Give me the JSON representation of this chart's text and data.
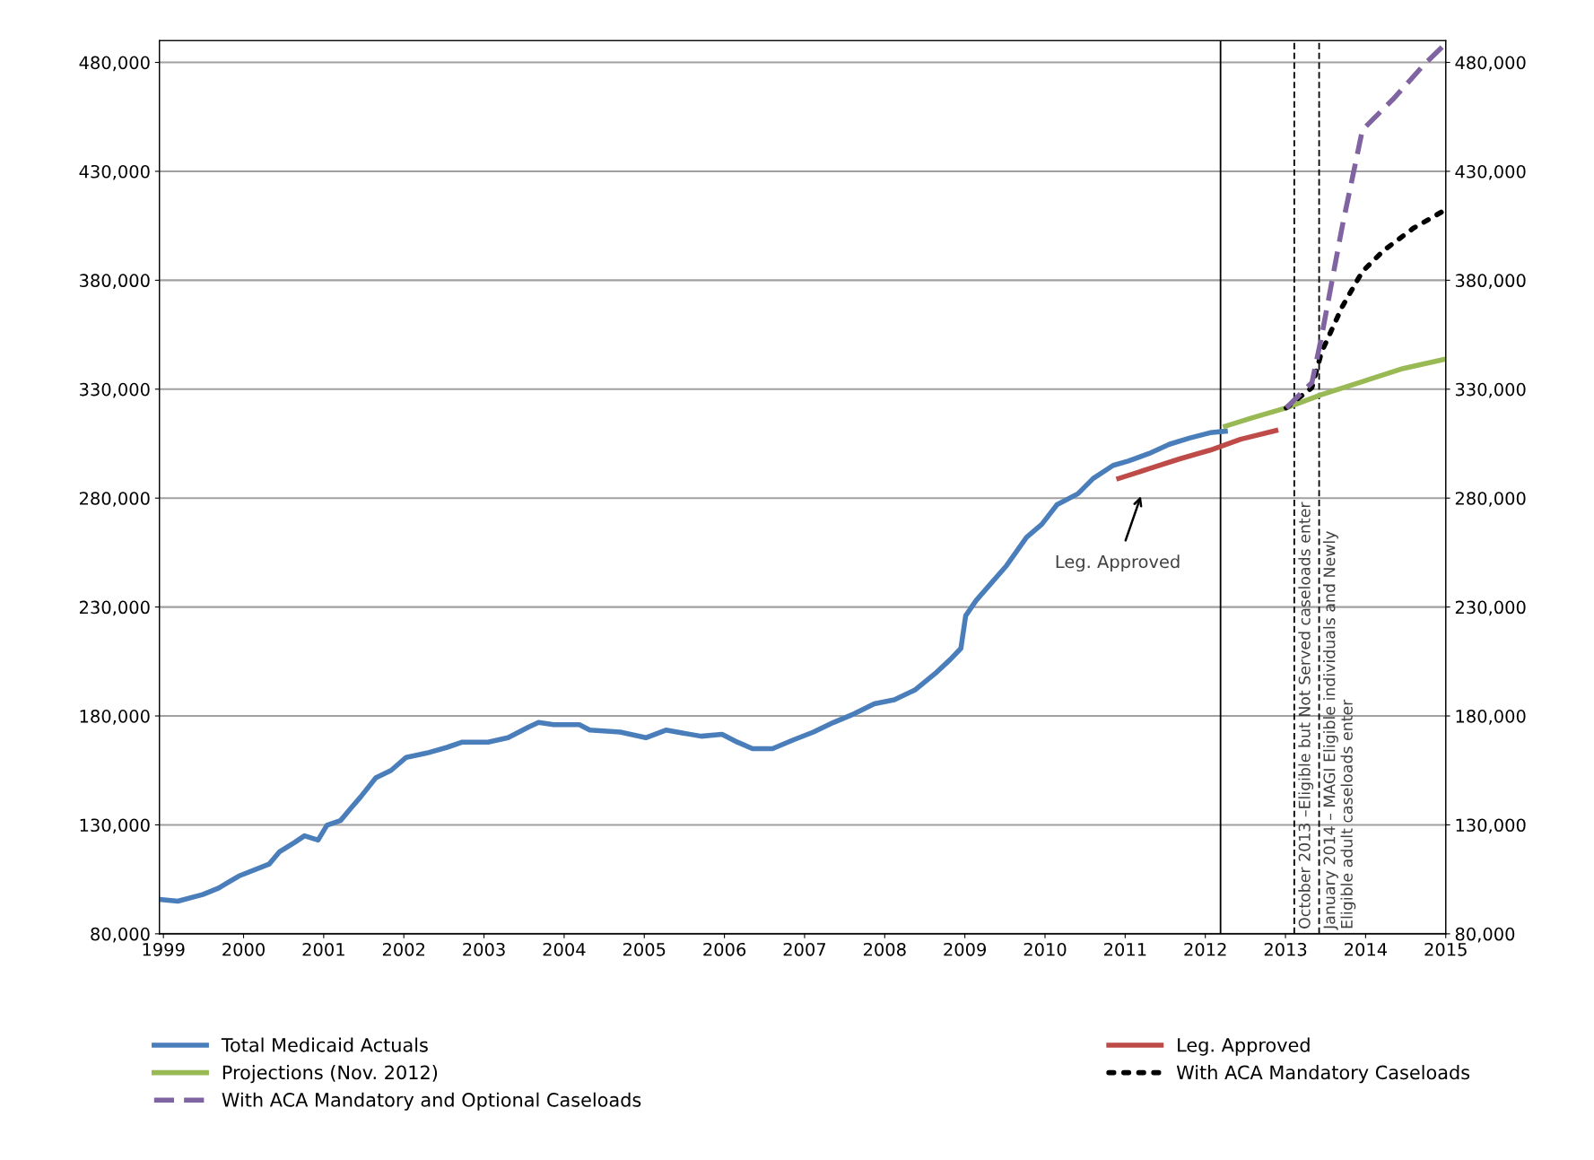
{
  "chart_data": {
    "type": "line",
    "xlim": [
      1998.95,
      2015.0
    ],
    "xticks": [
      1999,
      2000,
      2001,
      2002,
      2003,
      2004,
      2005,
      2006,
      2007,
      2008,
      2009,
      2010,
      2011,
      2012,
      2013,
      2014,
      2015
    ],
    "ylim": [
      80000,
      490000
    ],
    "yticks": [
      {
        "value": 80000,
        "label": "80,000"
      },
      {
        "value": 130000,
        "label": "130,000"
      },
      {
        "value": 180000,
        "label": "180,000"
      },
      {
        "value": 230000,
        "label": "230,000"
      },
      {
        "value": 280000,
        "label": "280,000"
      },
      {
        "value": 330000,
        "label": "330,000"
      },
      {
        "value": 380000,
        "label": "380,000"
      },
      {
        "value": 430000,
        "label": "430,000"
      },
      {
        "value": 480000,
        "label": "480,000"
      }
    ],
    "y2lim": [
      80000,
      490000
    ],
    "y2ticks": [
      {
        "value": 80000,
        "label": "80,000"
      },
      {
        "value": 130000,
        "label": "130,000"
      },
      {
        "value": 180000,
        "label": "180,000"
      },
      {
        "value": 230000,
        "label": "230,000"
      },
      {
        "value": 280000,
        "label": "280,000"
      },
      {
        "value": 330000,
        "label": "330,000"
      },
      {
        "value": 380000,
        "label": "380,000"
      },
      {
        "value": 430000,
        "label": "430,000"
      },
      {
        "value": 480000,
        "label": "480,000"
      }
    ],
    "grid": "y",
    "legend": "bottom",
    "series": [
      {
        "name": "Total Medicaid Actuals",
        "color": "#4a7ebb",
        "line_style": "solid",
        "x": [
          1998.95,
          1999.18,
          1999.49,
          1999.69,
          1999.94,
          2000.32,
          2000.45,
          2000.64,
          2000.76,
          2000.93,
          2001.04,
          2001.21,
          2001.34,
          2001.46,
          2001.65,
          2001.84,
          2002.03,
          2002.29,
          2002.54,
          2002.73,
          2003.05,
          2003.3,
          2003.56,
          2003.68,
          2003.87,
          2004.19,
          2004.32,
          2004.7,
          2005.02,
          2005.27,
          2005.71,
          2005.97,
          2006.16,
          2006.35,
          2006.6,
          2006.86,
          2007.11,
          2007.36,
          2007.62,
          2007.87,
          2008.12,
          2008.38,
          2008.63,
          2008.82,
          2008.95,
          2009.01,
          2009.14,
          2009.33,
          2009.52,
          2009.77,
          2009.96,
          2010.15,
          2010.41,
          2010.6,
          2010.85,
          2011.04,
          2011.3,
          2011.55,
          2011.8,
          2012.06,
          2012.25
        ],
        "values": [
          95800,
          95000,
          98000,
          101000,
          106500,
          112000,
          117700,
          122000,
          125000,
          123000,
          129800,
          132000,
          137700,
          142800,
          151600,
          155000,
          161000,
          163000,
          165600,
          168000,
          168000,
          170000,
          175000,
          177000,
          176000,
          176000,
          173500,
          172600,
          170000,
          173500,
          170700,
          171600,
          168000,
          165000,
          165000,
          169000,
          172600,
          177000,
          181000,
          185600,
          187400,
          192000,
          199500,
          206000,
          211000,
          226000,
          233000,
          241000,
          249000,
          262000,
          268000,
          277000,
          282000,
          289000,
          295000,
          297000,
          300500,
          304700,
          307500,
          310000,
          310700
        ]
      },
      {
        "name": "Leg. Approved",
        "color": "#be4b48",
        "line_style": "solid",
        "x": [
          2010.92,
          2011.3,
          2011.68,
          2012.06,
          2012.44,
          2012.88
        ],
        "values": [
          289000,
          293500,
          298000,
          302000,
          307000,
          311000
        ]
      },
      {
        "name": "Projections (Nov. 2012)",
        "color": "#98b954",
        "line_style": "solid",
        "x": [
          2012.25,
          2012.57,
          2013.01,
          2013.45,
          2013.96,
          2014.47,
          2014.98
        ],
        "values": [
          313000,
          316700,
          321400,
          327500,
          333500,
          339500,
          343700
        ]
      },
      {
        "name": "With ACA Mandatory Caseloads",
        "color": "#000000",
        "line_style": "dotted",
        "x": [
          2013.01,
          2013.33,
          2013.45,
          2013.71,
          2013.96,
          2014.22,
          2014.6,
          2014.98
        ],
        "values": [
          321400,
          330700,
          347000,
          368000,
          384000,
          393500,
          404000,
          412000
        ]
      },
      {
        "name": "With ACA Mandatory and Optional Caseloads",
        "color": "#8064a2",
        "line_style": "dashed",
        "x": [
          2013.01,
          2013.33,
          2013.45,
          2013.71,
          2013.96,
          2014.34,
          2014.72,
          2014.98
        ],
        "values": [
          321400,
          333000,
          354000,
          405000,
          449000,
          463000,
          478600,
          488000
        ]
      }
    ],
    "ref_lines": [
      {
        "axis": "x",
        "value": 2012.19,
        "label": null,
        "color": "#000000",
        "line_style": "solid"
      },
      {
        "axis": "x",
        "value": 2013.11,
        "label": "October 2013 –Eligible but Not Served caseloads enter",
        "color": "#000000",
        "line_style": "dashed"
      },
      {
        "axis": "x",
        "value": 2013.42,
        "label": "January 2014 – MAGI Eligible individuals and Newly\nEligible adult caseloads enter",
        "color": "#000000",
        "line_style": "dashed"
      }
    ],
    "annotations": [
      "Leg. Approved"
    ]
  }
}
